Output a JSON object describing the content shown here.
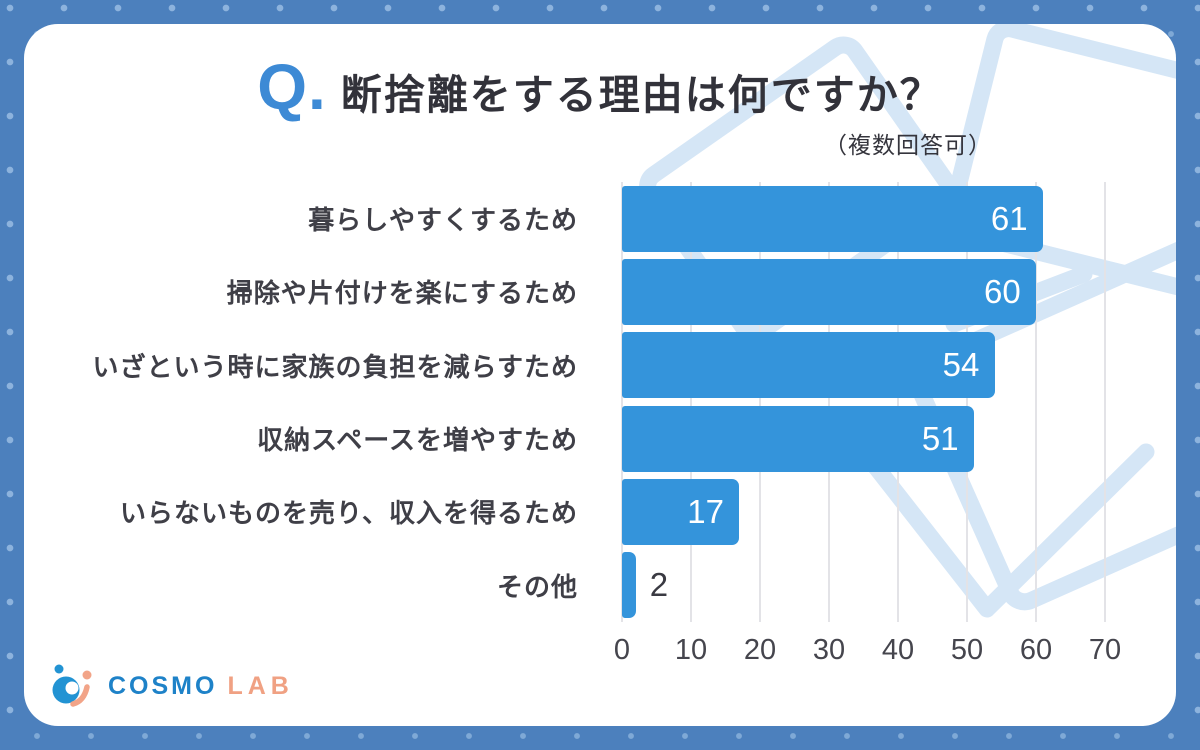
{
  "page": {
    "frame_color": "#4c80bd",
    "frame_dot_color": "#86aedb",
    "card_color": "#ffffff"
  },
  "header": {
    "q_prefix": "Q.",
    "title": "断捨離をする理由は何ですか？",
    "subtitle": "（複数回答可）",
    "q_color": "#3d8ad5",
    "title_color": "#32323a"
  },
  "chart_data": {
    "type": "bar",
    "orientation": "horizontal",
    "title": "断捨離をする理由は何ですか？",
    "subtitle": "（複数回答可）",
    "categories": [
      "暮らしやすくするため",
      "掃除や片付けを楽にするため",
      "いざという時に家族の負担を減らすため",
      "収納スペースを増やすため",
      "いらないものを売り、収入を得るため",
      "その他"
    ],
    "values": [
      61,
      60,
      54,
      51,
      17,
      2
    ],
    "xlabel": "",
    "ylabel": "",
    "xlim": [
      0,
      70
    ],
    "xticks": [
      0,
      10,
      20,
      30,
      40,
      50,
      60,
      70
    ],
    "grid": true,
    "legend": false,
    "bar_color": "#3494db",
    "gridline_color": "#e3e3e7",
    "value_label_color_inside": "#ffffff",
    "value_label_color_outside": "#3a3a42"
  },
  "decoration": {
    "motif": "cardboard-box-outlines",
    "color": "#d5e6f6"
  },
  "footer": {
    "logo_text_primary": "COSMO",
    "logo_text_secondary": "LAB",
    "logo_primary_color": "#1e82c8",
    "logo_secondary_color": "#f0a183"
  }
}
